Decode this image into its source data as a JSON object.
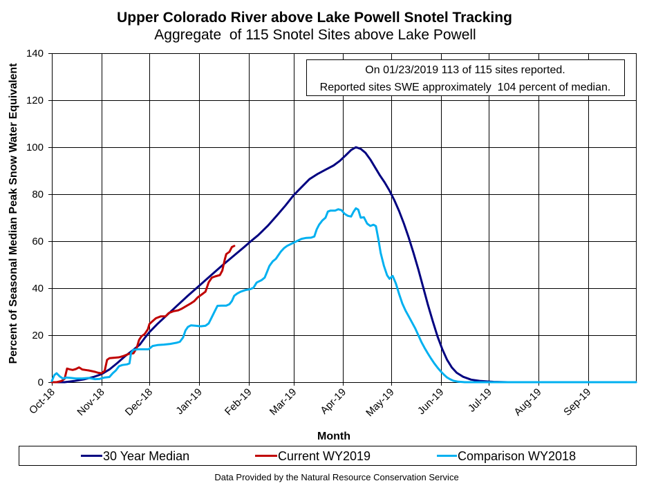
{
  "page": {
    "footer": "Data Provided by the Natural Resource Conservation Service"
  },
  "chart_data": {
    "type": "line",
    "title": "Upper Colorado River above Lake Powell Snotel Tracking",
    "subtitle": "Aggregate  of 115 Snotel Sites above Lake Powell",
    "xlabel": "Month",
    "ylabel": "Percent of Seasonal Median Peak Snow Water Equivalent",
    "xlim": [
      0,
      365
    ],
    "ylim": [
      0,
      140
    ],
    "grid": true,
    "yticks": [
      0,
      20,
      40,
      60,
      80,
      100,
      120,
      140
    ],
    "xticks": [
      {
        "label": "Oct-18",
        "x": 0
      },
      {
        "label": "Nov-18",
        "x": 31
      },
      {
        "label": "Dec-18",
        "x": 61
      },
      {
        "label": "Jan-19",
        "x": 92
      },
      {
        "label": "Feb-19",
        "x": 123
      },
      {
        "label": "Mar-19",
        "x": 151
      },
      {
        "label": "Apr-19",
        "x": 182
      },
      {
        "label": "May-19",
        "x": 212
      },
      {
        "label": "Jun-19",
        "x": 243
      },
      {
        "label": "Jul-19",
        "x": 273
      },
      {
        "label": "Aug-19",
        "x": 304
      },
      {
        "label": "Sep-19",
        "x": 335
      }
    ],
    "annotations": [
      "On 01/23/2019 113 of 115 sites reported.",
      "Reported sites SWE approximately  104 percent of median."
    ],
    "series": [
      {
        "name": "30 Year Median",
        "color": "#000080",
        "points": [
          [
            0,
            0
          ],
          [
            8,
            0
          ],
          [
            14,
            0.5
          ],
          [
            20,
            1.2
          ],
          [
            26,
            2.2
          ],
          [
            31,
            3.4
          ],
          [
            36,
            5.4
          ],
          [
            41,
            8.2
          ],
          [
            46,
            11.2
          ],
          [
            51,
            13.8
          ],
          [
            55,
            16
          ],
          [
            58,
            18.8
          ],
          [
            61,
            21.3
          ],
          [
            66,
            24.8
          ],
          [
            72,
            28.6
          ],
          [
            78,
            32.4
          ],
          [
            85,
            36.8
          ],
          [
            92,
            41
          ],
          [
            99,
            45.2
          ],
          [
            106,
            49.4
          ],
          [
            113,
            53.4
          ],
          [
            120,
            57.4
          ],
          [
            124,
            59.8
          ],
          [
            129,
            62.6
          ],
          [
            135,
            66.6
          ],
          [
            141,
            71.2
          ],
          [
            146,
            75.2
          ],
          [
            151,
            79.5
          ],
          [
            156,
            83
          ],
          [
            161,
            86.4
          ],
          [
            166,
            88.6
          ],
          [
            171,
            90.4
          ],
          [
            176,
            92.2
          ],
          [
            180,
            94.2
          ],
          [
            184,
            96.8
          ],
          [
            187,
            98.8
          ],
          [
            190,
            100
          ],
          [
            193,
            99.3
          ],
          [
            196,
            97.6
          ],
          [
            199,
            94.8
          ],
          [
            202,
            91.4
          ],
          [
            205,
            88
          ],
          [
            208,
            85
          ],
          [
            211,
            81.5
          ],
          [
            214,
            77.5
          ],
          [
            217,
            72.8
          ],
          [
            220,
            67.5
          ],
          [
            223,
            61.5
          ],
          [
            226,
            55
          ],
          [
            229,
            48
          ],
          [
            232,
            40.5
          ],
          [
            235,
            33
          ],
          [
            238,
            26
          ],
          [
            241,
            19.5
          ],
          [
            244,
            14
          ],
          [
            247,
            9.5
          ],
          [
            250,
            6.2
          ],
          [
            253,
            4
          ],
          [
            257,
            2.3
          ],
          [
            262,
            1.1
          ],
          [
            268,
            0.5
          ],
          [
            276,
            0.15
          ],
          [
            285,
            0
          ],
          [
            365,
            0
          ]
        ]
      },
      {
        "name": "Current WY2019",
        "color": "#C00000",
        "points": [
          [
            0,
            0
          ],
          [
            3,
            0
          ],
          [
            6,
            0.5
          ],
          [
            8,
            1.5
          ],
          [
            9.5,
            5.8
          ],
          [
            11,
            5.5
          ],
          [
            13,
            5.2
          ],
          [
            15,
            5.6
          ],
          [
            17,
            6.3
          ],
          [
            19,
            5.4
          ],
          [
            21,
            5.2
          ],
          [
            23,
            5
          ],
          [
            25,
            4.7
          ],
          [
            27,
            4.4
          ],
          [
            29,
            4
          ],
          [
            31,
            3.8
          ],
          [
            33,
            4.8
          ],
          [
            34.5,
            9.5
          ],
          [
            36,
            10.2
          ],
          [
            39,
            10.4
          ],
          [
            42,
            10.6
          ],
          [
            45,
            11.2
          ],
          [
            48,
            12
          ],
          [
            51,
            12.3
          ],
          [
            53,
            14.5
          ],
          [
            54.5,
            18
          ],
          [
            56,
            19.5
          ],
          [
            58,
            20.5
          ],
          [
            60,
            22.5
          ],
          [
            61,
            24.8
          ],
          [
            63,
            26
          ],
          [
            65,
            27.2
          ],
          [
            68,
            28
          ],
          [
            71,
            28
          ],
          [
            73,
            29.4
          ],
          [
            76,
            30.2
          ],
          [
            79,
            30.6
          ],
          [
            81,
            31.2
          ],
          [
            84,
            32.4
          ],
          [
            87,
            33.6
          ],
          [
            89,
            34.5
          ],
          [
            91,
            36
          ],
          [
            94,
            37.5
          ],
          [
            96,
            38.5
          ],
          [
            98,
            42.5
          ],
          [
            100,
            44.5
          ],
          [
            102,
            45
          ],
          [
            105,
            45.6
          ],
          [
            106.5,
            47.5
          ],
          [
            108,
            52
          ],
          [
            109,
            54.5
          ],
          [
            111,
            55.5
          ],
          [
            112.5,
            57.5
          ],
          [
            114,
            58
          ]
        ]
      },
      {
        "name": "Comparison WY2018",
        "color": "#00B0F0",
        "points": [
          [
            0,
            0.5
          ],
          [
            1.5,
            3
          ],
          [
            3,
            3.8
          ],
          [
            5,
            2.4
          ],
          [
            7,
            1.5
          ],
          [
            9,
            2
          ],
          [
            12,
            1.8
          ],
          [
            15,
            1.6
          ],
          [
            19,
            1.6
          ],
          [
            23,
            1.8
          ],
          [
            27,
            1.3
          ],
          [
            30,
            1.4
          ],
          [
            33,
            2
          ],
          [
            36,
            2.2
          ],
          [
            38,
            3.8
          ],
          [
            40,
            5
          ],
          [
            42,
            6.8
          ],
          [
            44,
            7.3
          ],
          [
            47,
            7.6
          ],
          [
            48.5,
            8
          ],
          [
            49.5,
            12.5
          ],
          [
            51,
            13.8
          ],
          [
            54,
            14
          ],
          [
            57,
            14
          ],
          [
            60.5,
            14
          ],
          [
            63,
            15.4
          ],
          [
            66,
            15.8
          ],
          [
            70,
            16
          ],
          [
            74,
            16.3
          ],
          [
            78,
            16.8
          ],
          [
            80,
            17.2
          ],
          [
            82,
            19
          ],
          [
            83.5,
            22
          ],
          [
            85,
            23.5
          ],
          [
            87,
            24.2
          ],
          [
            90,
            24
          ],
          [
            93,
            23.8
          ],
          [
            96,
            24
          ],
          [
            98,
            25
          ],
          [
            99.5,
            27
          ],
          [
            101.5,
            29.8
          ],
          [
            103.5,
            32.5
          ],
          [
            106,
            32.6
          ],
          [
            109,
            32.6
          ],
          [
            111,
            33.2
          ],
          [
            112.5,
            34.5
          ],
          [
            114,
            36.8
          ],
          [
            116,
            37.8
          ],
          [
            118,
            38.5
          ],
          [
            121,
            39.2
          ],
          [
            124,
            39.6
          ],
          [
            126,
            40.2
          ],
          [
            128,
            42.4
          ],
          [
            131,
            43.4
          ],
          [
            133,
            44.5
          ],
          [
            134.5,
            47
          ],
          [
            136,
            49.5
          ],
          [
            138,
            51.4
          ],
          [
            140,
            52.5
          ],
          [
            141.5,
            54
          ],
          [
            143,
            55.5
          ],
          [
            145,
            57
          ],
          [
            147,
            58
          ],
          [
            150,
            59
          ],
          [
            153,
            60
          ],
          [
            156,
            61
          ],
          [
            159,
            61.4
          ],
          [
            162,
            61.5
          ],
          [
            164,
            62
          ],
          [
            165.5,
            65
          ],
          [
            167,
            67
          ],
          [
            169,
            68.8
          ],
          [
            171,
            70
          ],
          [
            172.5,
            72.6
          ],
          [
            174,
            73
          ],
          [
            177,
            73
          ],
          [
            179,
            73.6
          ],
          [
            181,
            73.2
          ],
          [
            183,
            71.6
          ],
          [
            185,
            70.8
          ],
          [
            187,
            70.5
          ],
          [
            188.5,
            72.5
          ],
          [
            190,
            74
          ],
          [
            191.5,
            73.4
          ],
          [
            193,
            70
          ],
          [
            195,
            70.2
          ],
          [
            197,
            67.5
          ],
          [
            199,
            66.5
          ],
          [
            201,
            67
          ],
          [
            202.5,
            66.4
          ],
          [
            204,
            61
          ],
          [
            205.5,
            55
          ],
          [
            207.5,
            49.5
          ],
          [
            209.5,
            45.5
          ],
          [
            211,
            44
          ],
          [
            213,
            45.2
          ],
          [
            215,
            42
          ],
          [
            217,
            37.5
          ],
          [
            219,
            33.5
          ],
          [
            221,
            30.5
          ],
          [
            223,
            28
          ],
          [
            225,
            25.5
          ],
          [
            227,
            23
          ],
          [
            229,
            20
          ],
          [
            231,
            17
          ],
          [
            233,
            14.5
          ],
          [
            235,
            12.2
          ],
          [
            237,
            10
          ],
          [
            239,
            8
          ],
          [
            241,
            6.2
          ],
          [
            243,
            4.6
          ],
          [
            245,
            3.2
          ],
          [
            247,
            2
          ],
          [
            249,
            1.2
          ],
          [
            251,
            0.6
          ],
          [
            254,
            0.2
          ],
          [
            258,
            0
          ],
          [
            365,
            0
          ]
        ]
      }
    ]
  }
}
